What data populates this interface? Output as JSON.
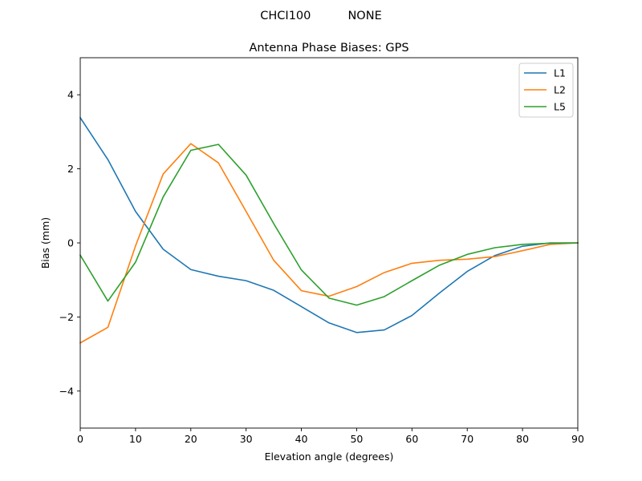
{
  "chart_data": {
    "type": "line",
    "suptitle": "CHCI100          NONE",
    "title": "Antenna Phase Biases: GPS",
    "xlabel": "Elevation angle (degrees)",
    "ylabel": "Bias (mm)",
    "xlim": [
      0,
      90
    ],
    "ylim": [
      -5,
      5
    ],
    "xticks": [
      0,
      10,
      20,
      30,
      40,
      50,
      60,
      70,
      80,
      90
    ],
    "yticks": [
      -4,
      -2,
      0,
      2,
      4
    ],
    "ytick_labels": [
      "−4",
      "−2",
      "0",
      "2",
      "4"
    ],
    "grid": false,
    "legend_position": "top-right",
    "x": [
      0,
      5,
      10,
      15,
      20,
      25,
      30,
      35,
      40,
      45,
      50,
      55,
      60,
      65,
      70,
      75,
      80,
      85,
      90
    ],
    "series": [
      {
        "name": "L1",
        "color": "#1f77b4",
        "values": [
          3.38,
          2.25,
          0.85,
          -0.17,
          -0.72,
          -0.9,
          -1.02,
          -1.28,
          -1.72,
          -2.16,
          -2.42,
          -2.35,
          -1.96,
          -1.35,
          -0.77,
          -0.34,
          -0.09,
          0.0,
          0.0
        ]
      },
      {
        "name": "L2",
        "color": "#ff7f0e",
        "values": [
          -2.7,
          -2.28,
          -0.08,
          1.86,
          2.68,
          2.16,
          0.85,
          -0.47,
          -1.29,
          -1.44,
          -1.18,
          -0.8,
          -0.55,
          -0.47,
          -0.44,
          -0.37,
          -0.21,
          -0.04,
          0.0
        ]
      },
      {
        "name": "L5",
        "color": "#2ca02c",
        "values": [
          -0.33,
          -1.57,
          -0.52,
          1.24,
          2.5,
          2.66,
          1.83,
          0.52,
          -0.73,
          -1.49,
          -1.68,
          -1.45,
          -1.02,
          -0.6,
          -0.31,
          -0.13,
          -0.04,
          -0.01,
          0.0
        ]
      }
    ]
  }
}
